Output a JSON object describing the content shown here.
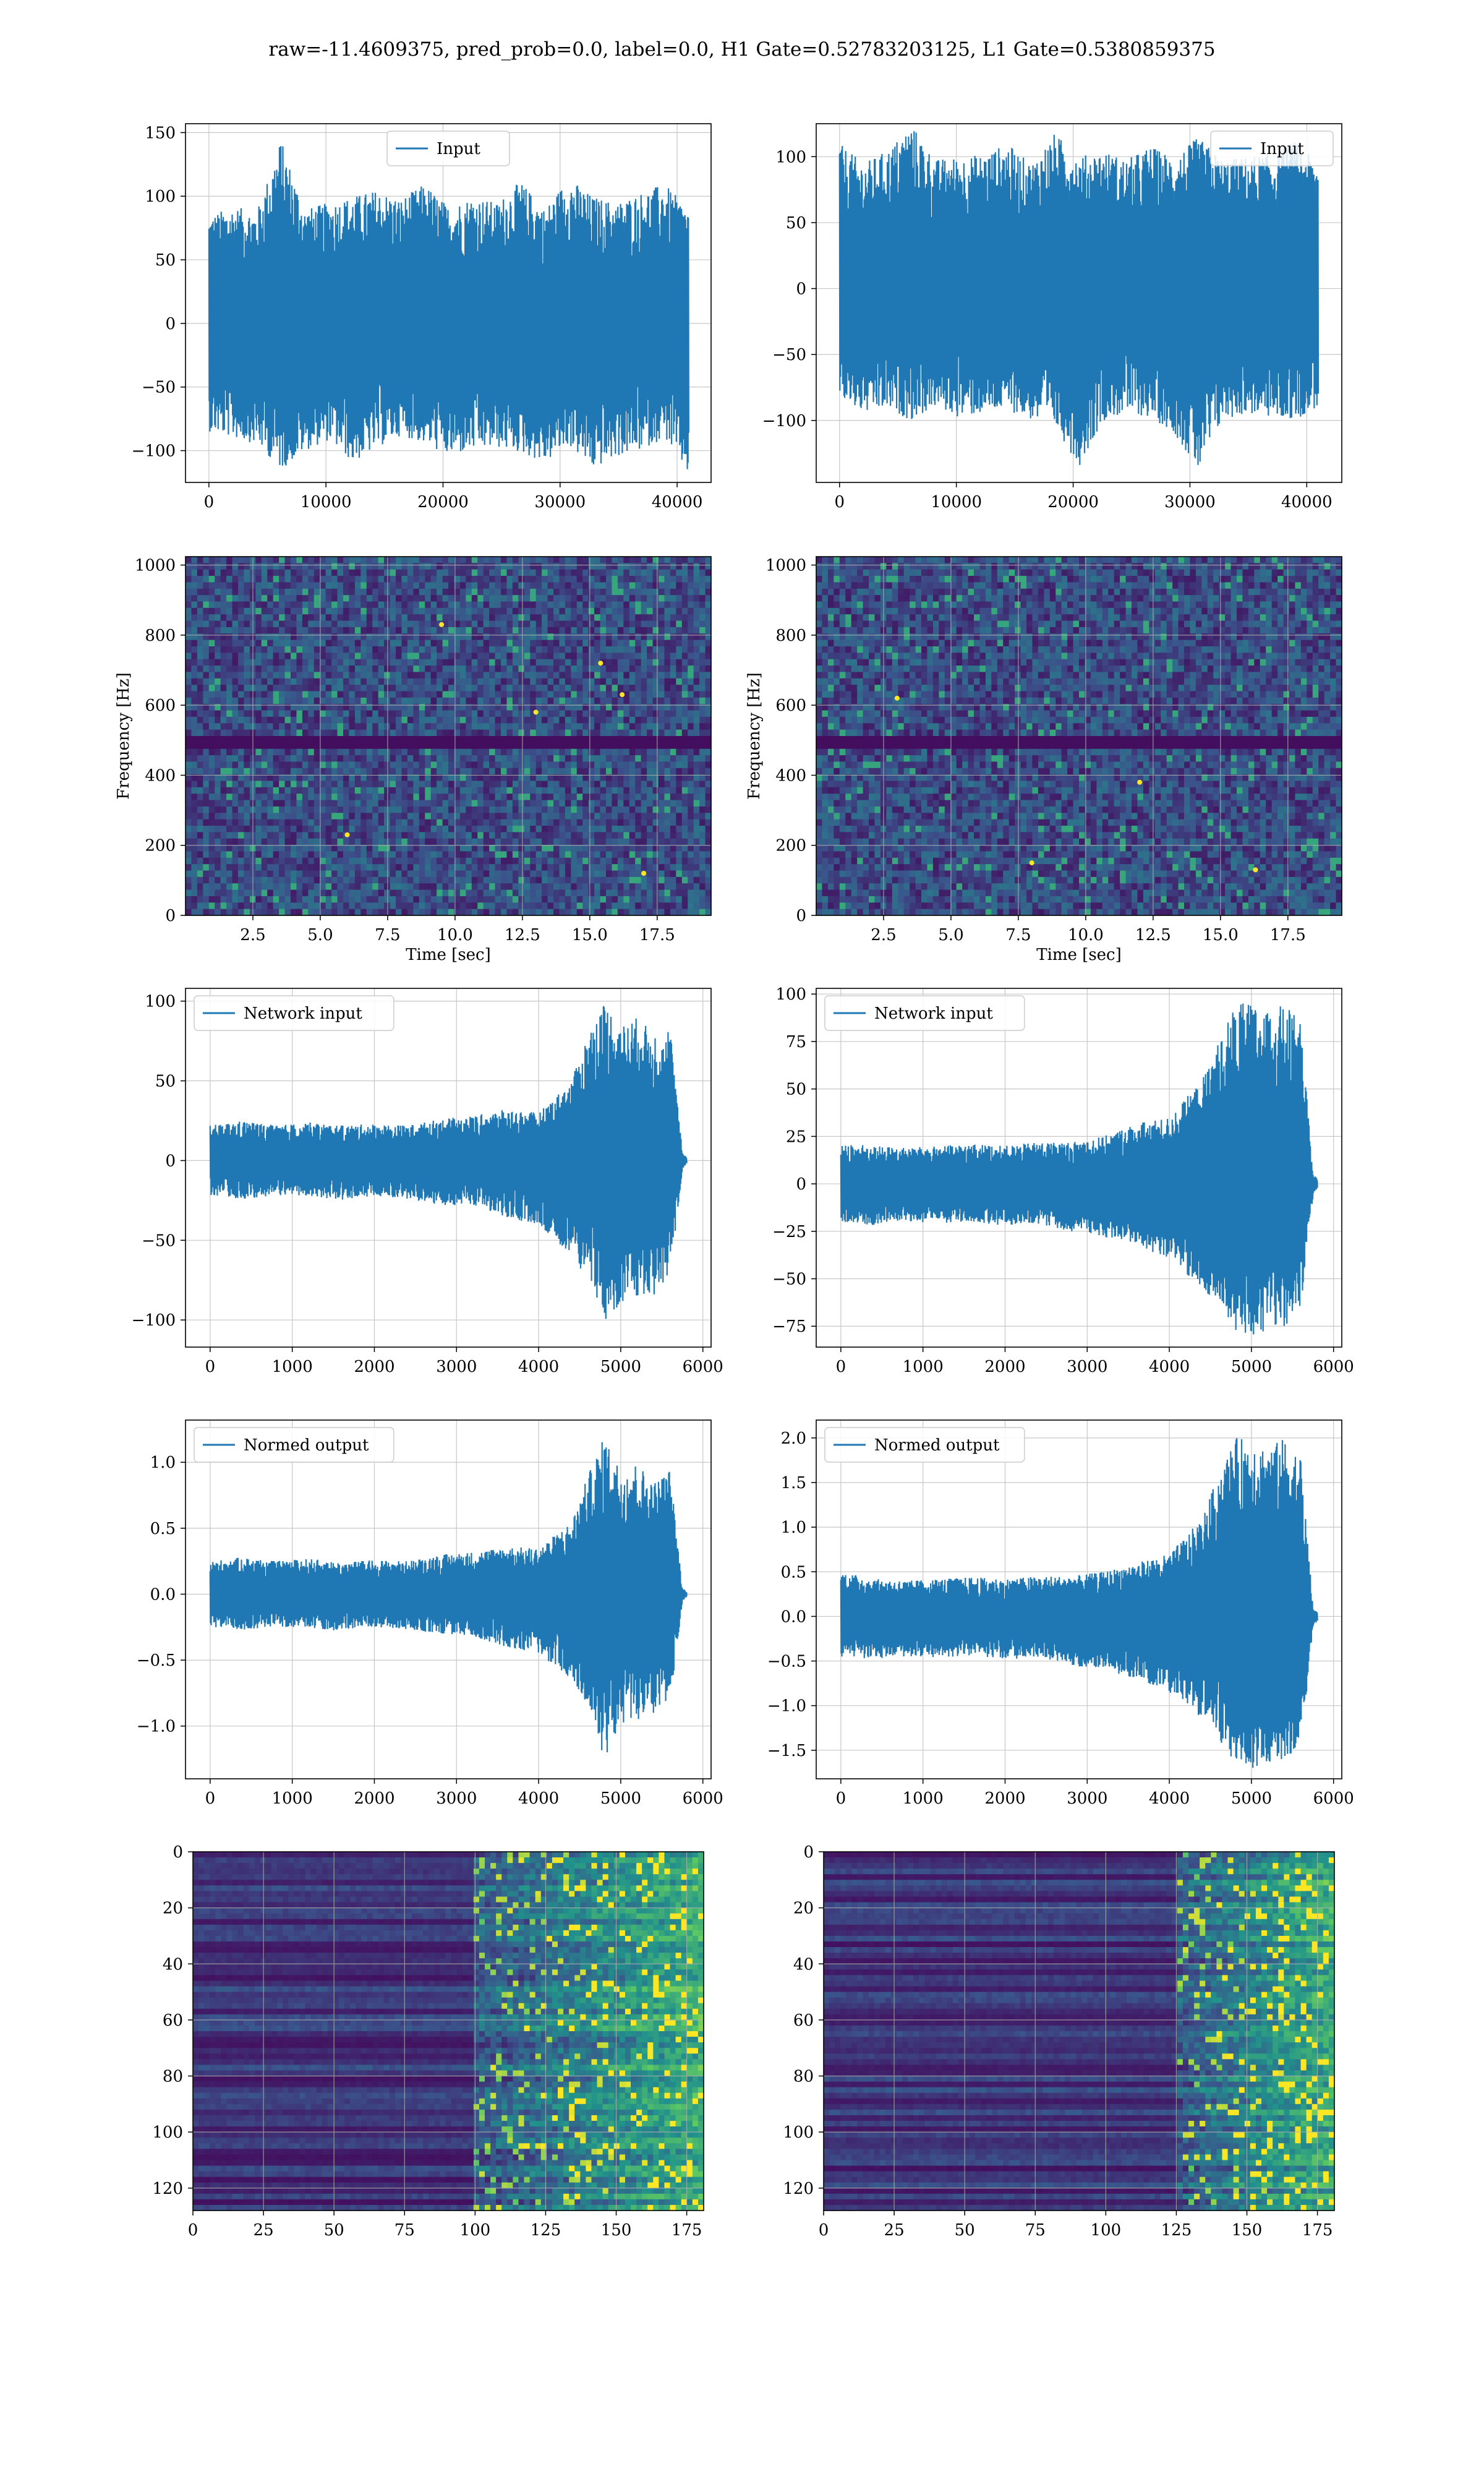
{
  "figure": {
    "title": "raw=-11.4609375, pred_prob=0.0, label=0.0, H1 Gate=0.52783203125, L1 Gate=0.5380859375",
    "colors": {
      "line": "#1f77b4",
      "grid": "#b0b0b0",
      "axes": "#000000",
      "viridis": [
        "#440154",
        "#3b528b",
        "#21918c",
        "#5ec962",
        "#fde725"
      ]
    }
  },
  "chart_data": [
    {
      "id": "h1-input",
      "type": "line",
      "detector": "H1",
      "legend": "Input",
      "legend_loc": "upper center",
      "series": [
        {
          "name": "Input",
          "envelope": {
            "x": [
              0,
              2048,
              4096,
              6144,
              8192,
              10240,
              12288,
              14336,
              16384,
              18432,
              20480,
              22528,
              24576,
              26624,
              28672,
              30720,
              32768,
              34816,
              36864,
              38912,
              40960
            ],
            "max": [
              85,
              92,
              88,
              145,
              90,
              95,
              100,
              105,
              98,
              110,
              92,
              100,
              95,
              112,
              90,
              115,
              100,
              95,
              103,
              110,
              90
            ],
            "min": [
              -85,
              -90,
              -95,
              -115,
              -100,
              -92,
              -110,
              -98,
              -88,
              -95,
              -105,
              -100,
              -98,
              -102,
              -110,
              -96,
              -115,
              -105,
              -100,
              -90,
              -120
            ]
          }
        }
      ],
      "xlim": [
        -2000,
        42900
      ],
      "ylim": [
        -125,
        157
      ],
      "xticks": [
        0,
        10000,
        20000,
        30000,
        40000
      ],
      "yticks": [
        -100,
        -50,
        0,
        50,
        100,
        150
      ],
      "grid": true,
      "xlabel": "",
      "ylabel": ""
    },
    {
      "id": "l1-input",
      "type": "line",
      "detector": "L1",
      "legend": "Input",
      "legend_loc": "upper right",
      "series": [
        {
          "name": "Input",
          "envelope": {
            "x": [
              0,
              2048,
              4096,
              6144,
              8192,
              10240,
              12288,
              14336,
              16384,
              18432,
              20480,
              22528,
              24576,
              26624,
              28672,
              30720,
              32768,
              34816,
              36864,
              38912,
              40960
            ],
            "max": [
              110,
              95,
              105,
              125,
              98,
              100,
              102,
              110,
              95,
              118,
              100,
              105,
              98,
              108,
              100,
              115,
              98,
              100,
              102,
              112,
              95
            ],
            "min": [
              -85,
              -95,
              -92,
              -100,
              -90,
              -98,
              -95,
              -92,
              -100,
              -105,
              -135,
              -100,
              -95,
              -98,
              -110,
              -140,
              -100,
              -95,
              -98,
              -100,
              -90
            ]
          }
        }
      ],
      "xlim": [
        -2000,
        43000
      ],
      "ylim": [
        -147,
        125
      ],
      "xticks": [
        0,
        10000,
        20000,
        30000,
        40000
      ],
      "yticks": [
        -100,
        -50,
        0,
        50,
        100
      ],
      "grid": true,
      "xlabel": "",
      "ylabel": ""
    },
    {
      "id": "h1-spectrogram",
      "type": "heatmap",
      "detector": "H1",
      "xlabel": "Time [sec]",
      "ylabel": "Frequency [Hz]",
      "xlim": [
        0,
        19.5
      ],
      "ylim": [
        0,
        1024
      ],
      "xticks": [
        2.5,
        5.0,
        7.5,
        10.0,
        12.5,
        15.0,
        17.5
      ],
      "xtick_labels": [
        "2.5",
        "5.0",
        "7.5",
        "10.0",
        "12.5",
        "15.0",
        "17.5"
      ],
      "yticks": [
        0,
        200,
        400,
        600,
        800,
        1000
      ],
      "grid": true,
      "colormap": "viridis",
      "dark_band_hz": [
        490,
        510
      ],
      "bright_spots": [
        [
          15.4,
          720
        ],
        [
          16.2,
          630
        ],
        [
          6.0,
          230
        ],
        [
          17.0,
          120
        ],
        [
          9.5,
          830
        ],
        [
          13.0,
          580
        ]
      ]
    },
    {
      "id": "l1-spectrogram",
      "type": "heatmap",
      "detector": "L1",
      "xlabel": "Time [sec]",
      "ylabel": "Frequency [Hz]",
      "xlim": [
        0,
        19.5
      ],
      "ylim": [
        0,
        1024
      ],
      "xticks": [
        2.5,
        5.0,
        7.5,
        10.0,
        12.5,
        15.0,
        17.5
      ],
      "xtick_labels": [
        "2.5",
        "5.0",
        "7.5",
        "10.0",
        "12.5",
        "15.0",
        "17.5"
      ],
      "yticks": [
        0,
        200,
        400,
        600,
        800,
        1000
      ],
      "grid": true,
      "colormap": "viridis",
      "dark_band_hz": [
        490,
        510
      ],
      "bright_spots": [
        [
          16.3,
          130
        ],
        [
          8.0,
          150
        ],
        [
          12.0,
          380
        ],
        [
          3.0,
          620
        ]
      ]
    },
    {
      "id": "h1-network-input",
      "type": "line",
      "detector": "H1",
      "legend": "Network input",
      "legend_loc": "upper left",
      "series": [
        {
          "name": "Network input",
          "envelope": {
            "x": [
              0,
              400,
              800,
              1200,
              1600,
              2000,
              2400,
              2800,
              3200,
              3600,
              4000,
              4400,
              4600,
              4800,
              5000,
              5200,
              5400,
              5600,
              5750,
              5800
            ],
            "max": [
              22,
              25,
              22,
              24,
              22,
              23,
              22,
              26,
              28,
              32,
              30,
              50,
              80,
              100,
              85,
              90,
              80,
              85,
              5,
              2
            ],
            "min": [
              -22,
              -24,
              -23,
              -22,
              -25,
              -22,
              -24,
              -28,
              -28,
              -36,
              -40,
              -60,
              -75,
              -100,
              -90,
              -85,
              -85,
              -70,
              -5,
              -2
            ]
          }
        }
      ],
      "xlim": [
        -300,
        6100
      ],
      "ylim": [
        -117,
        108
      ],
      "xticks": [
        0,
        1000,
        2000,
        3000,
        4000,
        5000,
        6000
      ],
      "yticks": [
        -100,
        -50,
        0,
        50,
        100
      ],
      "grid": true,
      "xlabel": "",
      "ylabel": ""
    },
    {
      "id": "l1-network-input",
      "type": "line",
      "detector": "L1",
      "legend": "Network input",
      "legend_loc": "upper left",
      "series": [
        {
          "name": "Network input",
          "envelope": {
            "x": [
              0,
              400,
              800,
              1200,
              1600,
              2000,
              2400,
              2800,
              3200,
              3600,
              4000,
              4400,
              4600,
              4800,
              5000,
              5200,
              5400,
              5600,
              5750,
              5800
            ],
            "max": [
              22,
              20,
              19,
              20,
              21,
              20,
              22,
              22,
              25,
              32,
              35,
              55,
              75,
              95,
              95,
              90,
              95,
              85,
              5,
              3
            ],
            "min": [
              -20,
              -22,
              -20,
              -21,
              -20,
              -22,
              -21,
              -25,
              -28,
              -32,
              -40,
              -55,
              -65,
              -78,
              -80,
              -78,
              -75,
              -68,
              -5,
              -3
            ]
          }
        }
      ],
      "xlim": [
        -300,
        6100
      ],
      "ylim": [
        -86,
        103
      ],
      "xticks": [
        0,
        1000,
        2000,
        3000,
        4000,
        5000,
        6000
      ],
      "yticks": [
        -75,
        -50,
        -25,
        0,
        25,
        50,
        75,
        100
      ],
      "grid": true,
      "xlabel": "",
      "ylabel": ""
    },
    {
      "id": "h1-normed-output",
      "type": "line",
      "detector": "H1",
      "legend": "Normed output",
      "legend_loc": "upper left",
      "series": [
        {
          "name": "Normed output",
          "envelope": {
            "x": [
              0,
              400,
              800,
              1200,
              1600,
              2000,
              2400,
              2800,
              3200,
              3600,
              4000,
              4400,
              4600,
              4800,
              5000,
              5200,
              5400,
              5600,
              5750,
              5800
            ],
            "max": [
              0.25,
              0.28,
              0.25,
              0.27,
              0.24,
              0.26,
              0.25,
              0.3,
              0.32,
              0.36,
              0.35,
              0.55,
              0.9,
              1.2,
              0.95,
              1.0,
              0.85,
              0.95,
              0.05,
              0.02
            ],
            "min": [
              -0.25,
              -0.27,
              -0.25,
              -0.26,
              -0.28,
              -0.25,
              -0.27,
              -0.3,
              -0.32,
              -0.4,
              -0.45,
              -0.65,
              -0.9,
              -1.25,
              -1.0,
              -0.95,
              -0.95,
              -0.8,
              -0.05,
              -0.02
            ]
          }
        }
      ],
      "xlim": [
        -300,
        6100
      ],
      "ylim": [
        -1.4,
        1.32
      ],
      "xticks": [
        0,
        1000,
        2000,
        3000,
        4000,
        5000,
        6000
      ],
      "yticks": [
        -1.0,
        -0.5,
        0.0,
        0.5,
        1.0
      ],
      "grid": true,
      "xlabel": "",
      "ylabel": ""
    },
    {
      "id": "l1-normed-output",
      "type": "line",
      "detector": "L1",
      "legend": "Normed output",
      "legend_loc": "upper left",
      "series": [
        {
          "name": "Normed output",
          "envelope": {
            "x": [
              0,
              400,
              800,
              1200,
              1600,
              2000,
              2400,
              2800,
              3200,
              3600,
              4000,
              4400,
              4600,
              4800,
              5000,
              5200,
              5400,
              5600,
              5750,
              5800
            ],
            "max": [
              0.5,
              0.42,
              0.4,
              0.42,
              0.44,
              0.42,
              0.45,
              0.45,
              0.5,
              0.6,
              0.7,
              1.1,
              1.6,
              2.0,
              2.0,
              1.9,
              2.0,
              1.8,
              0.1,
              0.05
            ],
            "min": [
              -0.45,
              -0.48,
              -0.45,
              -0.46,
              -0.44,
              -0.48,
              -0.46,
              -0.55,
              -0.6,
              -0.7,
              -0.85,
              -1.15,
              -1.4,
              -1.65,
              -1.7,
              -1.65,
              -1.6,
              -1.45,
              -0.1,
              -0.05
            ]
          }
        }
      ],
      "xlim": [
        -300,
        6100
      ],
      "ylim": [
        -1.82,
        2.2
      ],
      "xticks": [
        0,
        1000,
        2000,
        3000,
        4000,
        5000,
        6000
      ],
      "yticks": [
        -1.5,
        -1.0,
        -0.5,
        0.0,
        0.5,
        1.0,
        1.5,
        2.0
      ],
      "grid": true,
      "xlabel": "",
      "ylabel": ""
    },
    {
      "id": "h1-feature-map",
      "type": "heatmap",
      "detector": "H1",
      "xlim": [
        0,
        181
      ],
      "ylim": [
        0,
        128
      ],
      "y_inverted": true,
      "xticks": [
        0,
        25,
        50,
        75,
        100,
        125,
        150,
        175
      ],
      "yticks": [
        0,
        20,
        40,
        60,
        80,
        100,
        120
      ],
      "grid": true,
      "colormap": "viridis",
      "activation_onset_col": 100,
      "xlabel": "",
      "ylabel": ""
    },
    {
      "id": "l1-feature-map",
      "type": "heatmap",
      "detector": "L1",
      "xlim": [
        0,
        181
      ],
      "ylim": [
        0,
        128
      ],
      "y_inverted": true,
      "xticks": [
        0,
        25,
        50,
        75,
        100,
        125,
        150,
        175
      ],
      "yticks": [
        0,
        20,
        40,
        60,
        80,
        100,
        120
      ],
      "grid": true,
      "colormap": "viridis",
      "activation_onset_col": 125,
      "xlabel": "",
      "ylabel": ""
    }
  ]
}
